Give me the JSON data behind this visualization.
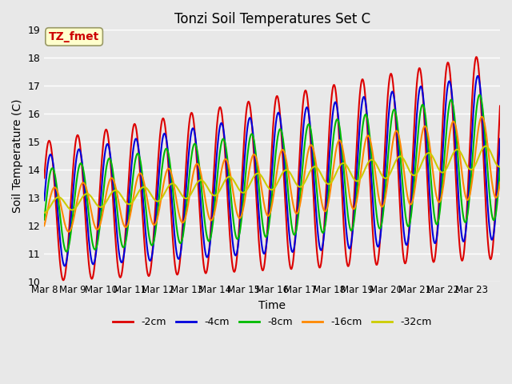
{
  "title": "Tonzi Soil Temperatures Set C",
  "xlabel": "Time",
  "ylabel": "Soil Temperature (C)",
  "ylim": [
    10.0,
    19.0
  ],
  "yticks": [
    10.0,
    11.0,
    12.0,
    13.0,
    14.0,
    15.0,
    16.0,
    17.0,
    18.0,
    19.0
  ],
  "xtick_labels": [
    "Mar 8",
    "Mar 9",
    "Mar 10",
    "Mar 11",
    "Mar 12",
    "Mar 13",
    "Mar 14",
    "Mar 15",
    "Mar 16",
    "Mar 17",
    "Mar 18",
    "Mar 19",
    "Mar 20",
    "Mar 21",
    "Mar 22",
    "Mar 23"
  ],
  "annotation_label": "TZ_fmet",
  "annotation_color": "#cc0000",
  "annotation_bg": "#ffffcc",
  "series_colors": [
    "#dd0000",
    "#0000dd",
    "#00bb00",
    "#ff8800",
    "#cccc00"
  ],
  "series_labels": [
    "-2cm",
    "-4cm",
    "-8cm",
    "-16cm",
    "-32cm"
  ],
  "plot_bg": "#e8e8e8",
  "grid_color": "#ffffff",
  "n_days": 16,
  "points_per_day": 48
}
